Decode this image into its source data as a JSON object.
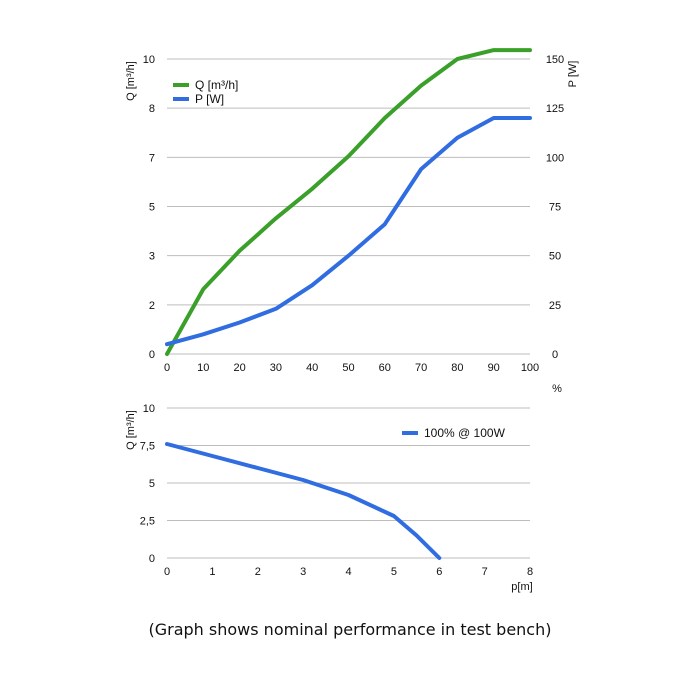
{
  "caption": "(Graph shows nominal performance in test bench)",
  "chart_data": [
    {
      "type": "line",
      "xlabel": "%",
      "ylabel": "Q [m³/h]",
      "y2label": "P [W]",
      "x_ticks": [
        "0",
        "10",
        "20",
        "30",
        "40",
        "50",
        "60",
        "70",
        "80",
        "90",
        "100"
      ],
      "y_ticks": [
        "0",
        "2",
        "3",
        "5",
        "7",
        "8",
        "10"
      ],
      "y2_ticks": [
        "0",
        "25",
        "50",
        "75",
        "100",
        "125",
        "150"
      ],
      "xlim": [
        0,
        100
      ],
      "ylim": [
        0,
        10
      ],
      "y2lim": [
        0,
        150
      ],
      "grid": true,
      "legend": "top-left",
      "series": [
        {
          "name": "Q [m³/h]",
          "axis": "left",
          "color": "#3aa02a",
          "x": [
            0,
            10,
            20,
            30,
            40,
            50,
            60,
            70,
            80,
            90,
            100
          ],
          "y": [
            0.0,
            2.2,
            3.5,
            4.6,
            5.6,
            6.7,
            8.0,
            9.1,
            10.0,
            10.3,
            10.3
          ]
        },
        {
          "name": "P [W]",
          "axis": "right",
          "color": "#2f6de0",
          "x": [
            0,
            10,
            20,
            30,
            40,
            50,
            60,
            70,
            75,
            80,
            90,
            100
          ],
          "y": [
            5,
            10,
            16,
            23,
            35,
            50,
            66,
            94,
            102,
            110,
            120,
            120
          ]
        }
      ]
    },
    {
      "type": "line",
      "xlabel": "p[m]",
      "ylabel": "Q [m³/h]",
      "x_ticks": [
        "0",
        "1",
        "2",
        "3",
        "4",
        "5",
        "6",
        "7",
        "8"
      ],
      "y_ticks": [
        "0",
        "2,5",
        "5",
        "7,5",
        "10"
      ],
      "xlim": [
        0,
        8
      ],
      "ylim": [
        0,
        10
      ],
      "grid": true,
      "legend": "top-right",
      "series": [
        {
          "name": "100% @ 100W",
          "color": "#2f6de0",
          "x": [
            0,
            1,
            2,
            3,
            4,
            5,
            5.5,
            6
          ],
          "y": [
            7.6,
            6.8,
            6.0,
            5.2,
            4.2,
            2.8,
            1.5,
            0.0
          ]
        }
      ]
    }
  ]
}
